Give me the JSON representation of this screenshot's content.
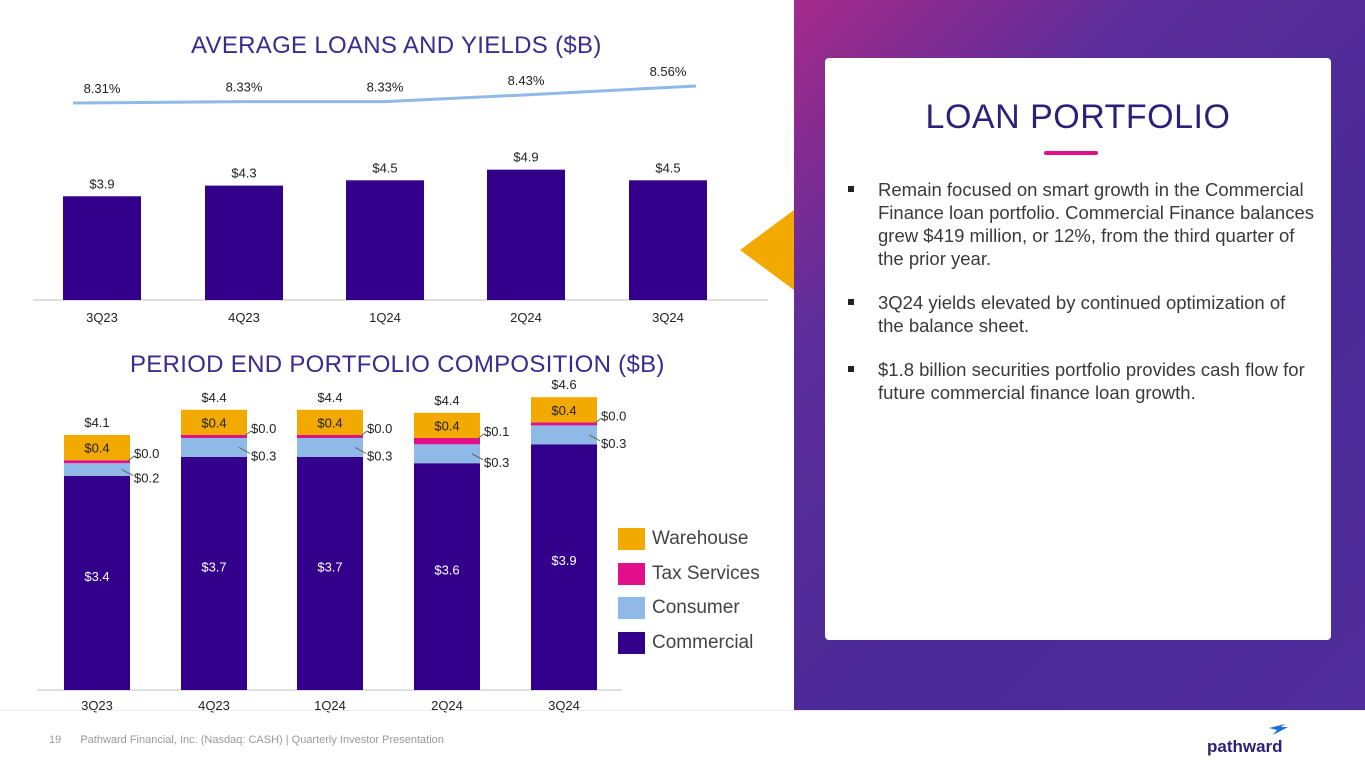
{
  "slide_title": "LOAN PORTFOLIO",
  "bullets": [
    "Remain focused on smart growth in the Commercial Finance loan portfolio. Commercial Finance balances grew $419 million, or 12%, from the third quarter of the prior year.",
    "3Q24 yields elevated by continued optimization of the balance sheet.",
    "$1.8 billion securities portfolio provides cash flow for future commercial finance loan growth."
  ],
  "footer": {
    "page_number": "19",
    "text": "Pathward Financial, Inc. (Nasdaq: CASH) | Quarterly Investor Presentation",
    "logo_text": "pathward"
  },
  "colors": {
    "commercial": "#32008a",
    "consumer": "#8fb9e6",
    "tax_services": "#e20f8a",
    "warehouse": "#f2a900",
    "yield_line": "#8fb9e6",
    "accent": "#f2a900"
  },
  "chart_data": [
    {
      "type": "bar",
      "title": "AVERAGE LOANS AND YIELDS ($B)",
      "categories": [
        "3Q23",
        "4Q23",
        "1Q24",
        "2Q24",
        "3Q24"
      ],
      "series": [
        {
          "values": [
            3.9,
            4.3,
            4.5,
            4.9,
            4.5
          ],
          "labels": [
            "$3.9",
            "$4.3",
            "$4.5",
            "$4.9",
            "$4.5"
          ]
        },
        {
          "type": "line",
          "values": [
            8.31,
            8.33,
            8.33,
            8.43,
            8.56
          ],
          "labels": [
            "8.31%",
            "8.33%",
            "8.33%",
            "8.43%",
            "8.56%"
          ]
        }
      ],
      "xlabel": "",
      "ylabel": "",
      "grid": false
    },
    {
      "type": "bar",
      "stacked": true,
      "title": "PERIOD END PORTFOLIO COMPOSITION ($B)",
      "categories": [
        "3Q23",
        "4Q23",
        "1Q24",
        "2Q24",
        "3Q24"
      ],
      "totals": [
        4.1,
        4.4,
        4.4,
        4.4,
        4.6
      ],
      "total_labels": [
        "$4.1",
        "$4.4",
        "$4.4",
        "$4.4",
        "$4.6"
      ],
      "series": [
        {
          "name": "Commercial",
          "values": [
            3.4,
            3.7,
            3.7,
            3.6,
            3.9
          ],
          "labels": [
            "$3.4",
            "$3.7",
            "$3.7",
            "$3.6",
            "$3.9"
          ]
        },
        {
          "name": "Consumer",
          "values": [
            0.2,
            0.3,
            0.3,
            0.3,
            0.3
          ],
          "labels": [
            "$0.2",
            "$0.3",
            "$0.3",
            "$0.3",
            "$0.3"
          ]
        },
        {
          "name": "Tax Services",
          "values": [
            0.0,
            0.0,
            0.0,
            0.1,
            0.0
          ],
          "labels": [
            "$0.0",
            "$0.0",
            "$0.0",
            "$0.1",
            "$0.0"
          ]
        },
        {
          "name": "Warehouse",
          "values": [
            0.4,
            0.4,
            0.4,
            0.4,
            0.4
          ],
          "labels": [
            "$0.4",
            "$0.4",
            "$0.4",
            "$0.4",
            "$0.4"
          ]
        }
      ],
      "legend": "right",
      "xlabel": "",
      "ylabel": "",
      "grid": false
    }
  ]
}
